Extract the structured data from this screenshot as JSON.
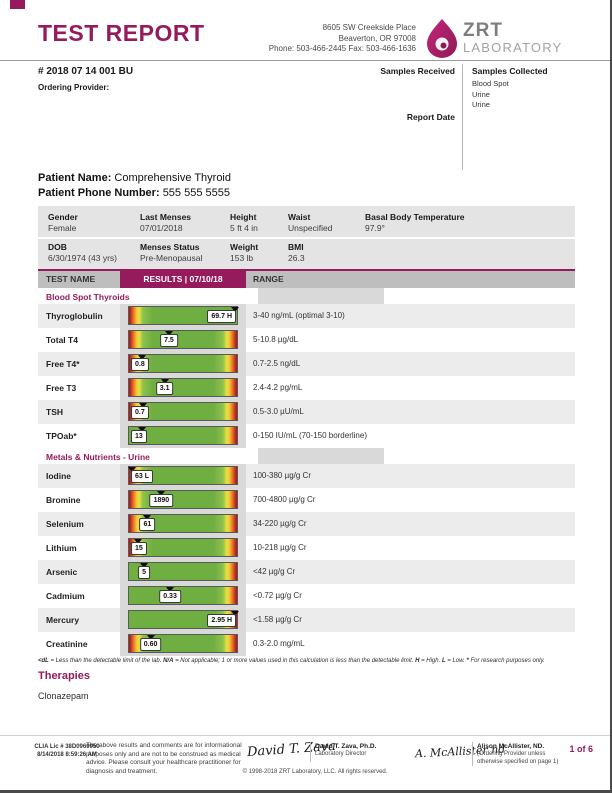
{
  "colors": {
    "accent": "#951B5C",
    "header_gray": "#BEBEBE",
    "band_gray": "#D9D9D9",
    "stripe_gray": "#ECECEC",
    "box_gray": "#E4E4E4",
    "green": "#6FAE41",
    "green_light": "#8DC14B",
    "yellow": "#E8E23F",
    "amber": "#F2C63B",
    "orange": "#EE7D23",
    "red": "#C43A22",
    "dark_red": "#971B1E",
    "logo_gray": "#7E7E7E",
    "logo_light": "#A3A3A3"
  },
  "top_header": {
    "title": "TEST REPORT",
    "address_lines": [
      "8605 SW Creekside Place",
      "Beaverton, OR 97008",
      "Phone: 503-466-2445 Fax: 503-466-1636"
    ],
    "logo": {
      "brand": "ZRT",
      "sub": "LABORATORY"
    }
  },
  "order": {
    "order_number": "# 2018 07 14 001 BU",
    "ordering_provider_label": "Ordering Provider:",
    "samples_received_label": "Samples Received",
    "report_date_label": "Report Date",
    "samples_collected_label": "Samples Collected",
    "samples_collected": [
      "Blood Spot",
      "Urine",
      "Urine"
    ]
  },
  "patient": {
    "name_label": "Patient Name:",
    "name": "Comprehensive Thyroid",
    "phone_label": "Patient Phone Number:",
    "phone": "555 555 5555",
    "info_rows": [
      [
        {
          "label": "Gender",
          "value": "Female"
        },
        {
          "label": "Last Menses",
          "value": "07/01/2018"
        },
        {
          "label": "Height",
          "value": "5 ft 4 in"
        },
        {
          "label": "Waist",
          "value": "Unspecified"
        },
        {
          "label": "Basal Body Temperature",
          "value": "97.9°"
        }
      ],
      [
        {
          "label": "DOB",
          "value": "6/30/1974 (43 yrs)"
        },
        {
          "label": "Menses Status",
          "value": "Pre-Menopausal"
        },
        {
          "label": "Weight",
          "value": "153 lb"
        },
        {
          "label": "BMI",
          "value": "26.3"
        }
      ]
    ]
  },
  "results_table": {
    "headers": {
      "test_name": "TEST NAME",
      "results": "RESULTS | 07/10/18",
      "range": "RANGE"
    },
    "sections": [
      {
        "title": "Blood Spot Thyroids",
        "rows": [
          {
            "name": "Thyroglobulin",
            "result": "69.7 H",
            "range": "3-40 ng/mL (optimal 3-10)",
            "gradient": "left",
            "marker_pct": 98,
            "box_align": "right"
          },
          {
            "name": "Total T4",
            "result": "7.5",
            "range": "5-10.8 µg/dL",
            "gradient": "both",
            "marker_pct": 37,
            "box_align": "center"
          },
          {
            "name": "Free T4*",
            "result": "0.8",
            "range": "0.7-2.5 ng/dL",
            "gradient": "both",
            "marker_pct": 12,
            "box_align": "left"
          },
          {
            "name": "Free T3",
            "result": "3.1",
            "range": "2.4-4.2 pg/mL",
            "gradient": "both",
            "marker_pct": 33,
            "box_align": "center"
          },
          {
            "name": "TSH",
            "result": "0.7",
            "range": "0.5-3.0 µU/mL",
            "gradient": "both",
            "marker_pct": 13,
            "box_align": "left"
          },
          {
            "name": "TPOab*",
            "result": "13",
            "range": "0-150 IU/mL (70-150 borderline)",
            "gradient": "right",
            "marker_pct": 12,
            "box_align": "left"
          }
        ]
      },
      {
        "title": "Metals & Nutrients - Urine",
        "rows": [
          {
            "name": "Iodine",
            "result": "63 L",
            "range": "100-380 µg/g Cr",
            "gradient": "both",
            "marker_pct": 3,
            "box_align": "left"
          },
          {
            "name": "Bromine",
            "result": "1890",
            "range": "700-4800 µg/g Cr",
            "gradient": "both",
            "marker_pct": 30,
            "box_align": "center"
          },
          {
            "name": "Selenium",
            "result": "61",
            "range": "34-220 µg/g Cr",
            "gradient": "both",
            "marker_pct": 17,
            "box_align": "center"
          },
          {
            "name": "Lithium",
            "result": "15",
            "range": "10-218 µg/g Cr",
            "gradient": "both",
            "marker_pct": 8,
            "box_align": "left"
          },
          {
            "name": "Arsenic",
            "result": "5",
            "range": "<42 µg/g Cr",
            "gradient": "right",
            "marker_pct": 14,
            "box_align": "center"
          },
          {
            "name": "Cadmium",
            "result": "0.33",
            "range": "<0.72 µg/g Cr",
            "gradient": "right",
            "marker_pct": 38,
            "box_align": "center"
          },
          {
            "name": "Mercury",
            "result": "2.95 H",
            "range": "<1.58 µg/g Cr",
            "gradient": "right",
            "marker_pct": 98,
            "box_align": "right"
          },
          {
            "name": "Creatinine",
            "result": "0.60",
            "range": "0.3-2.0 mg/mL",
            "gradient": "both",
            "marker_pct": 20,
            "box_align": "center"
          }
        ]
      }
    ]
  },
  "footnote_parts": [
    {
      "b": "<dL"
    },
    {
      "t": " = Less than the detectable limit of the lab.  "
    },
    {
      "b": "N/A"
    },
    {
      "t": " = Not applicable; 1 or more values used in this calculation is less than the detectable limit.  "
    },
    {
      "b": "H"
    },
    {
      "t": " = High.  "
    },
    {
      "b": "L"
    },
    {
      "t": " = Low.  "
    },
    {
      "b": "*"
    },
    {
      "t": " For research purposes only."
    }
  ],
  "therapies": {
    "title": "Therapies",
    "items": [
      "Clonazepam"
    ]
  },
  "footer": {
    "clia_line1": "CLIA Lic # 38D0960950",
    "clia_line2": "8/14/2018 8:59:26 AM",
    "disclaimer": "The above results and comments are for informational purposes only and are not to be construed as medical advice. Please consult your healthcare practitioner for diagnosis and treatment.",
    "signature1_script": "David T. Zava",
    "signature1_name": "David T. Zava, Ph.D.",
    "signature1_role": "Laboratory Director",
    "signature2_script": "A. McAllister nd",
    "signature2_name": "Alison McAllister, ND.",
    "signature2_role": "(Ordering Provider unless otherwise specified on page 1)",
    "copyright": "© 1998-2018 ZRT Laboratory, LLC. All rights reserved.",
    "page_number": "1 of 6"
  }
}
